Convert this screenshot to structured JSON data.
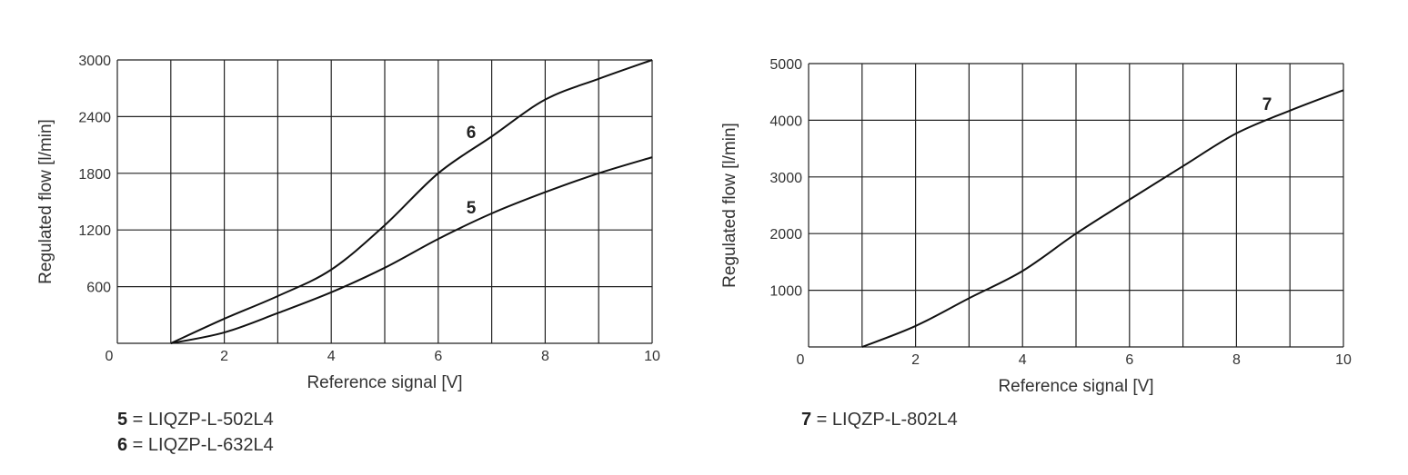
{
  "chart_data": [
    {
      "type": "line",
      "title": "",
      "xlabel": "Reference signal [V]",
      "ylabel": "Regulated flow [l/min]",
      "xlim": [
        0,
        10
      ],
      "ylim": [
        0,
        3000
      ],
      "x_ticks": [
        0,
        2,
        4,
        6,
        8,
        10
      ],
      "y_ticks": [
        600,
        1200,
        1800,
        2400,
        3000
      ],
      "grid": true,
      "x": [
        1,
        2,
        3,
        4,
        5,
        6,
        7,
        8,
        9,
        10
      ],
      "series": [
        {
          "name": "5",
          "values": [
            0,
            115,
            320,
            540,
            800,
            1105,
            1375,
            1600,
            1800,
            1970
          ]
        },
        {
          "name": "6",
          "values": [
            0,
            260,
            500,
            780,
            1250,
            1800,
            2190,
            2580,
            2800,
            3000
          ]
        }
      ],
      "legend": [
        {
          "key": "5",
          "text": "LIQZP-L-502L4"
        },
        {
          "key": "6",
          "text": "LIQZP-L-632L4"
        }
      ]
    },
    {
      "type": "line",
      "title": "",
      "xlabel": "Reference signal [V]",
      "ylabel": "Regulated flow [l/min]",
      "xlim": [
        0,
        10
      ],
      "ylim": [
        0,
        5000
      ],
      "x_ticks": [
        0,
        2,
        4,
        6,
        8,
        10
      ],
      "y_ticks": [
        1000,
        2000,
        3000,
        4000,
        5000
      ],
      "grid": true,
      "x": [
        1,
        2,
        3,
        4,
        5,
        6,
        7,
        8,
        9,
        10
      ],
      "series": [
        {
          "name": "7",
          "values": [
            0,
            370,
            860,
            1340,
            2000,
            2600,
            3190,
            3770,
            4170,
            4530
          ]
        }
      ],
      "legend": [
        {
          "key": "7",
          "text": "LIQZP-L-802L4"
        }
      ]
    }
  ],
  "left": {
    "xlabel": "Reference signal [V]",
    "ylabel": "Regulated flow [l/min]",
    "zero_label": "0",
    "legend": [
      {
        "key": "5",
        "eq": " = ",
        "text": "LIQZP-L-502L4"
      },
      {
        "key": "6",
        "eq": " = ",
        "text": "LIQZP-L-632L4"
      }
    ]
  },
  "right": {
    "xlabel": "Reference signal [V]",
    "ylabel": "Regulated flow [l/min]",
    "zero_label": "0",
    "legend": [
      {
        "key": "7",
        "eq": " = ",
        "text": "LIQZP-L-802L4"
      }
    ]
  },
  "colors": {
    "grid": "#222222",
    "curve": "#111111",
    "text": "#333333"
  }
}
